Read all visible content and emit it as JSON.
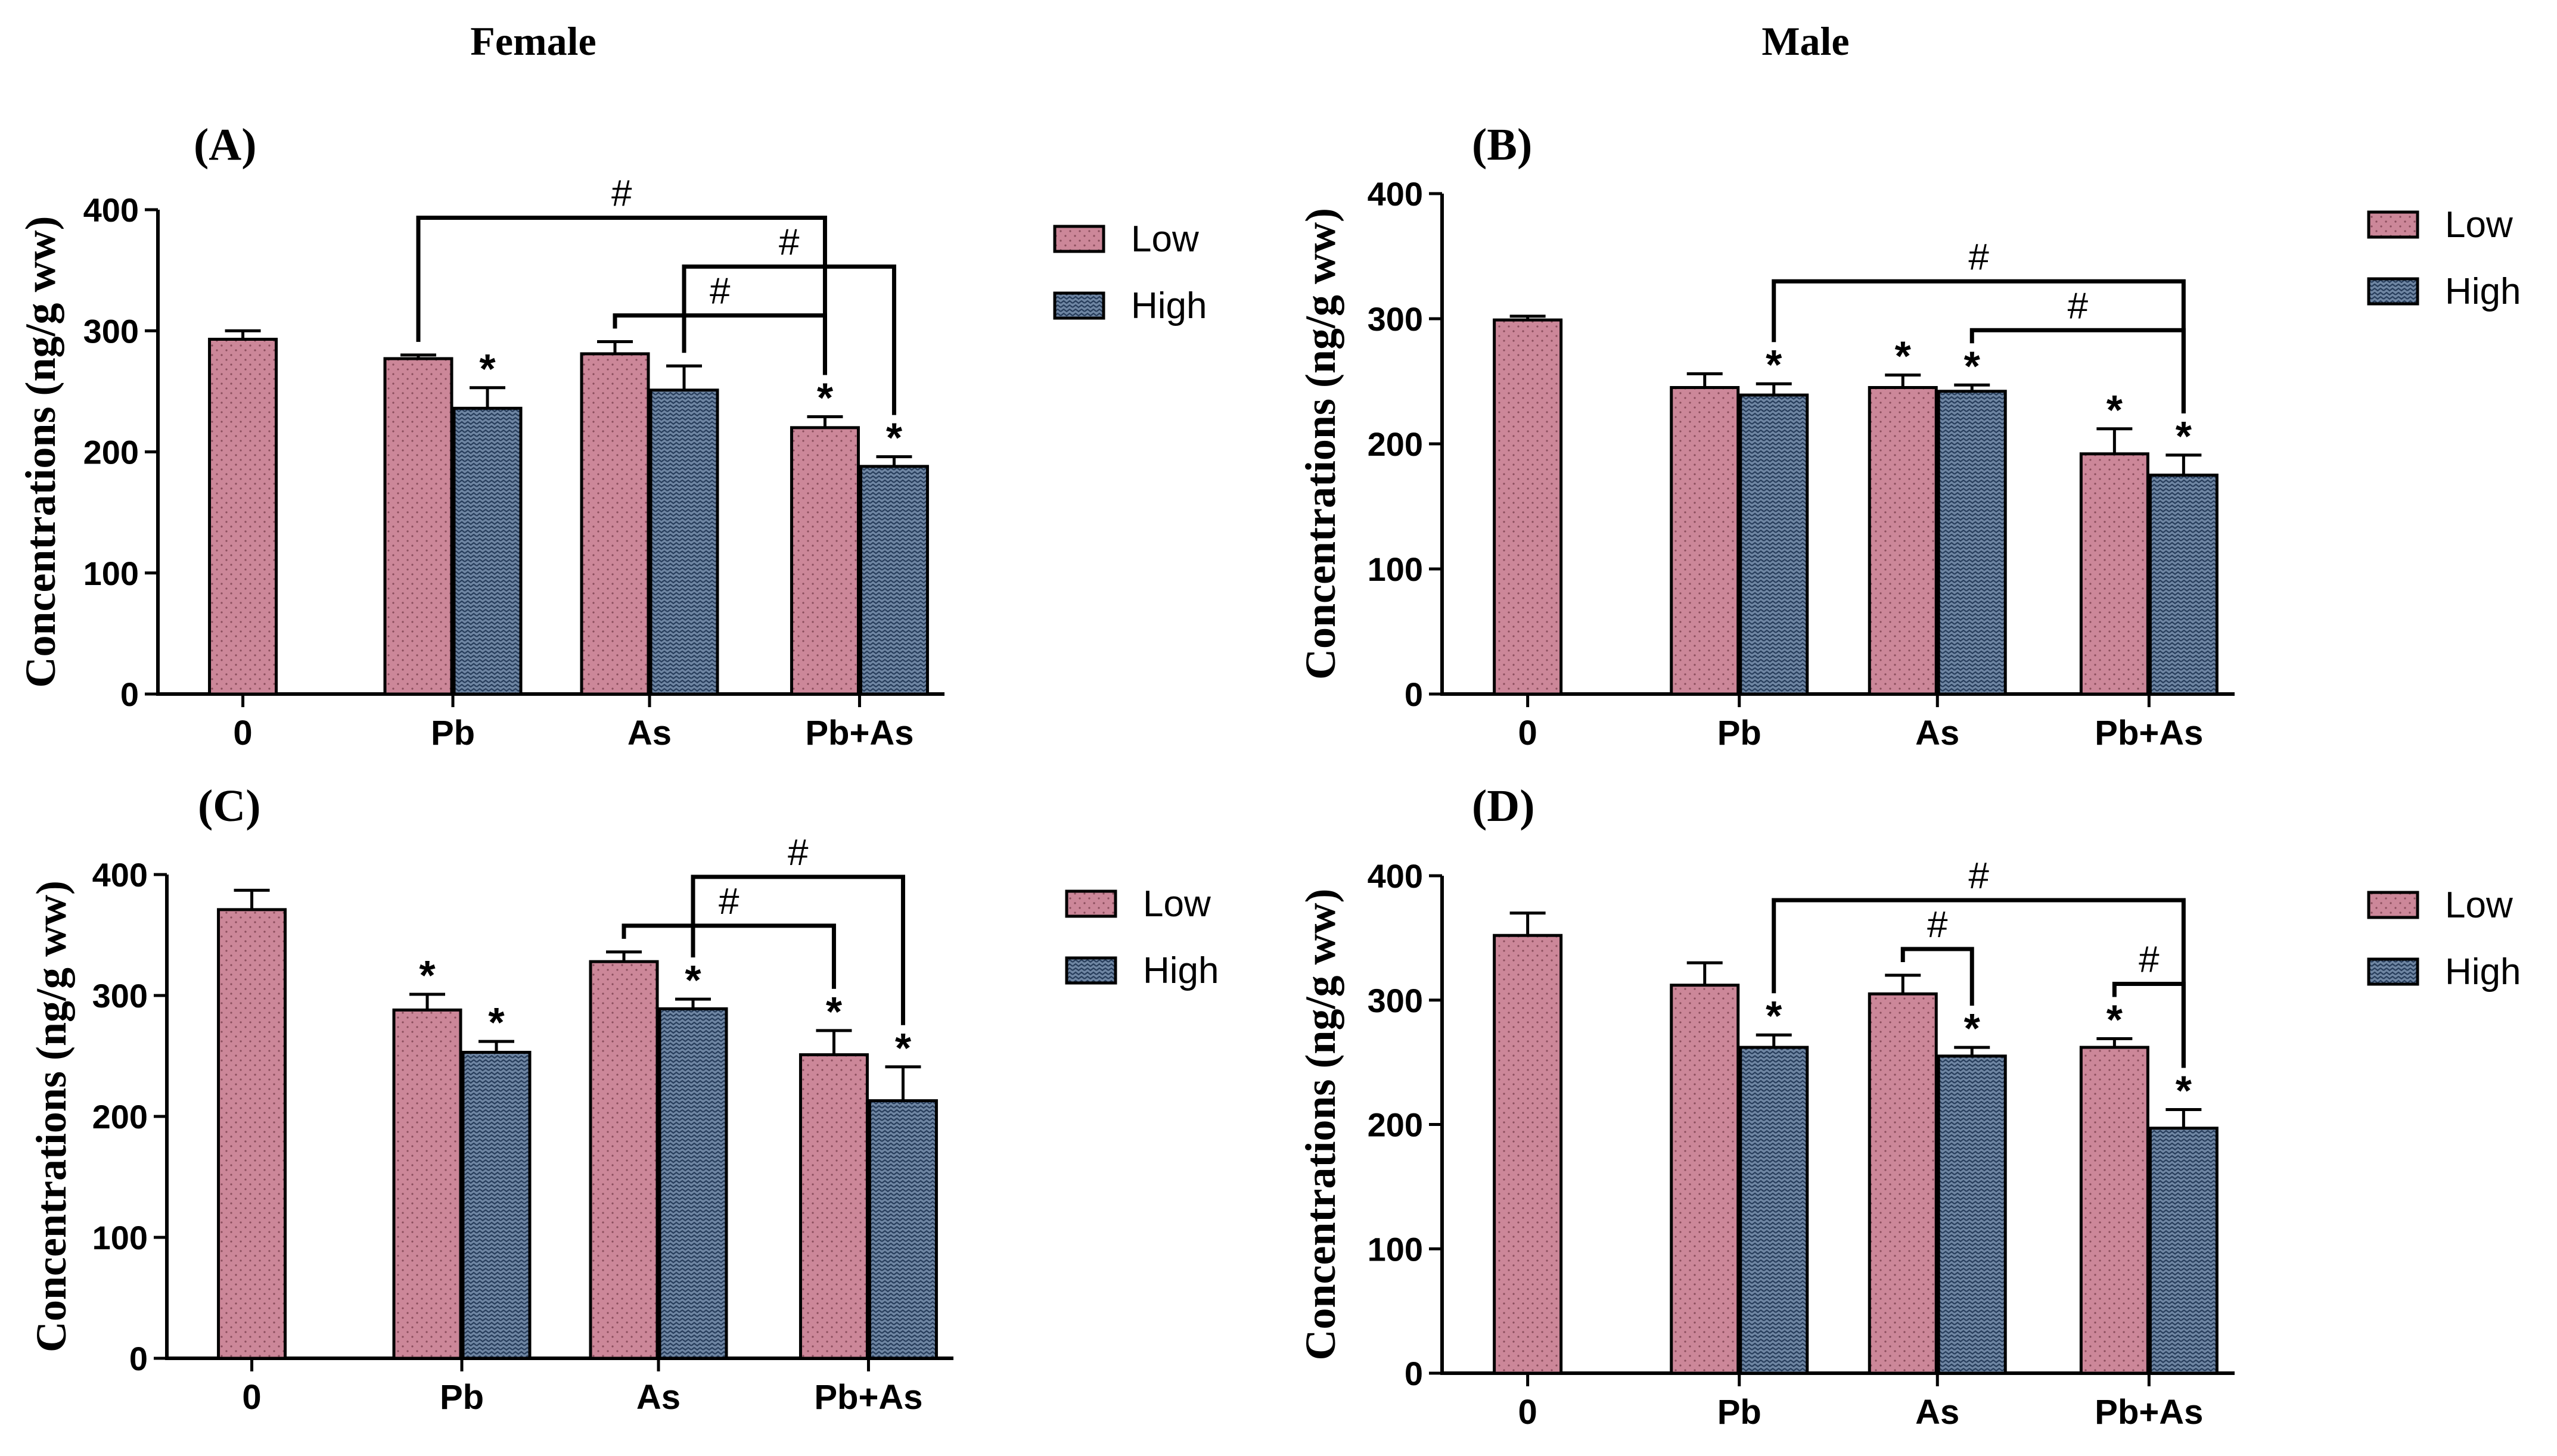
{
  "headers": {
    "female": "Female",
    "male": "Male"
  },
  "colors": {
    "low": "#cc8799",
    "high": "#6f86a3",
    "axis": "#000000"
  },
  "legend": {
    "low": "Low",
    "high": "High"
  },
  "chart_data": [
    {
      "type": "bar",
      "panel": "(A)",
      "group": "Female",
      "ylabel": "Concentrations (ng/g ww)",
      "ylim": [
        0,
        400
      ],
      "yticks": [
        "0",
        "100",
        "200",
        "300",
        "400"
      ],
      "categories": [
        "0",
        "Pb",
        "As",
        "Pb+As"
      ],
      "series": [
        {
          "name": "Low",
          "values": [
            293,
            277,
            281,
            220
          ],
          "errors": [
            7,
            3,
            10,
            9
          ]
        },
        {
          "name": "High",
          "values": [
            null,
            236,
            251,
            188
          ],
          "errors": [
            null,
            17,
            20,
            8
          ]
        }
      ],
      "control_series": "Low",
      "stars": [
        [
          false,
          false,
          false,
          true
        ],
        [
          false,
          true,
          false,
          true
        ]
      ],
      "comparisons": [
        {
          "from": [
            "Pb",
            "Low"
          ],
          "to": [
            "Pb+As",
            "Low"
          ],
          "label": "#"
        },
        {
          "from": [
            "As",
            "Low"
          ],
          "to": [
            "Pb+As",
            "Low"
          ],
          "label": "#"
        },
        {
          "from": [
            "As",
            "High"
          ],
          "to": [
            "Pb+As",
            "High"
          ],
          "label": "#"
        }
      ]
    },
    {
      "type": "bar",
      "panel": "(B)",
      "group": "Male",
      "ylabel": "Concentrations (ng/g ww)",
      "ylim": [
        0,
        400
      ],
      "yticks": [
        "0",
        "100",
        "200",
        "300",
        "400"
      ],
      "categories": [
        "0",
        "Pb",
        "As",
        "Pb+As"
      ],
      "series": [
        {
          "name": "Low",
          "values": [
            299,
            245,
            245,
            192
          ],
          "errors": [
            3,
            11,
            10,
            20
          ]
        },
        {
          "name": "High",
          "values": [
            null,
            239,
            242,
            175
          ],
          "errors": [
            null,
            9,
            5,
            16
          ]
        }
      ],
      "control_series": "Low",
      "stars": [
        [
          false,
          false,
          true,
          true
        ],
        [
          false,
          true,
          true,
          true
        ]
      ],
      "comparisons": [
        {
          "from": [
            "Pb",
            "High"
          ],
          "to": [
            "Pb+As",
            "High"
          ],
          "label": "#"
        },
        {
          "from": [
            "As",
            "High"
          ],
          "to": [
            "Pb+As",
            "High"
          ],
          "label": "#"
        }
      ]
    },
    {
      "type": "bar",
      "panel": "(C)",
      "group": "Female",
      "ylabel": "Concentrations (ng/g ww)",
      "ylim": [
        0,
        400
      ],
      "yticks": [
        "0",
        "100",
        "200",
        "300",
        "400"
      ],
      "categories": [
        "0",
        "Pb",
        "As",
        "Pb+As"
      ],
      "series": [
        {
          "name": "Low",
          "values": [
            371,
            288,
            328,
            251
          ],
          "errors": [
            16,
            13,
            8,
            20
          ]
        },
        {
          "name": "High",
          "values": [
            null,
            253,
            289,
            213
          ],
          "errors": [
            null,
            9,
            8,
            28
          ]
        }
      ],
      "control_series": "Low",
      "stars": [
        [
          false,
          true,
          false,
          true
        ],
        [
          false,
          true,
          true,
          true
        ]
      ],
      "comparisons": [
        {
          "from": [
            "As",
            "Low"
          ],
          "to": [
            "Pb+As",
            "Low"
          ],
          "label": "#"
        },
        {
          "from": [
            "As",
            "High"
          ],
          "to": [
            "Pb+As",
            "High"
          ],
          "label": "#"
        }
      ]
    },
    {
      "type": "bar",
      "panel": "(D)",
      "group": "Male",
      "ylabel": "Concentrations (ng/g ww)",
      "ylim": [
        0,
        400
      ],
      "yticks": [
        "0",
        "100",
        "200",
        "300",
        "400"
      ],
      "categories": [
        "0",
        "Pb",
        "As",
        "Pb+As"
      ],
      "series": [
        {
          "name": "Low",
          "values": [
            352,
            312,
            305,
            262
          ],
          "errors": [
            18,
            18,
            15,
            7
          ]
        },
        {
          "name": "High",
          "values": [
            null,
            262,
            255,
            197
          ],
          "errors": [
            null,
            10,
            7,
            15
          ]
        }
      ],
      "control_series": "Low",
      "stars": [
        [
          false,
          false,
          false,
          true
        ],
        [
          false,
          true,
          true,
          true
        ]
      ],
      "comparisons": [
        {
          "from": [
            "Pb",
            "High"
          ],
          "to": [
            "Pb+As",
            "High"
          ],
          "label": "#"
        },
        {
          "from": [
            "As",
            "Low"
          ],
          "to": [
            "As",
            "High"
          ],
          "label": "#"
        },
        {
          "from": [
            "Pb+As",
            "Low"
          ],
          "to": [
            "Pb+As",
            "High"
          ],
          "label": "#"
        }
      ]
    }
  ]
}
